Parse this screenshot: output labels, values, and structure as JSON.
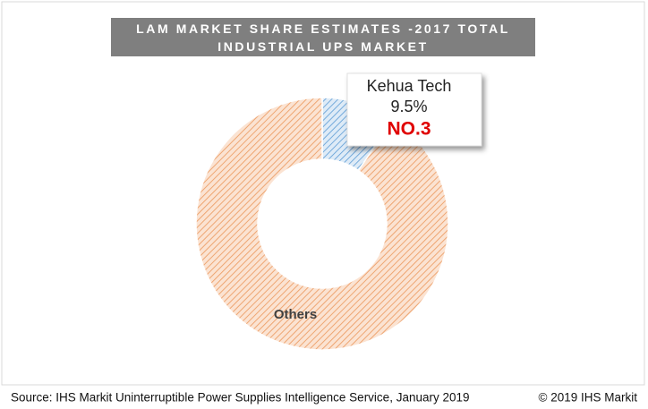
{
  "chart_data": {
    "type": "donut",
    "title": "LAM MARKET SHARE ESTIMATES -2017 TOTAL INDUSTRIAL UPS MARKET",
    "categories": [
      "Kehua Tech",
      "Others"
    ],
    "values": [
      9.5,
      90.5
    ],
    "value_labels": [
      "9.5%",
      null
    ],
    "colors": [
      "#5b9bd5",
      "#ed9f68"
    ],
    "annotation": "NO.3",
    "source": "Source: IHS Markit Uninterruptible Power Supplies Intelligence Service, January 2019",
    "copyright": "© 2019 IHS Markit"
  }
}
